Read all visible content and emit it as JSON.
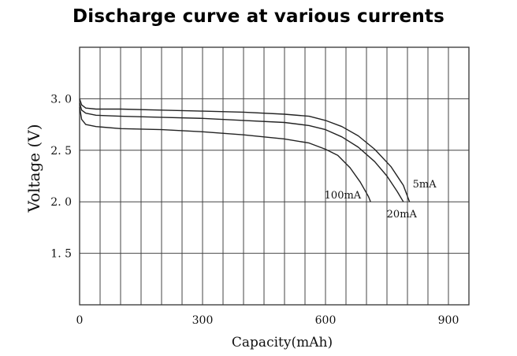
{
  "chart_data": {
    "type": "line",
    "title": "Discharge curve at various currents",
    "xlabel": "Capacity(mAh)",
    "ylabel": "Voltage (V)",
    "xlim": [
      0,
      950
    ],
    "ylim": [
      1.0,
      3.5
    ],
    "grid": true,
    "x_ticks": [
      "0",
      "300",
      "600",
      "900"
    ],
    "y_ticks": [
      "1. 5",
      "2. 0",
      "2. 5",
      "3. 0"
    ],
    "y_tick_values": [
      1.5,
      2.0,
      2.5,
      3.0
    ],
    "x_tick_values": [
      0,
      300,
      600,
      900
    ],
    "series": [
      {
        "name": "5mA",
        "x": [
          0,
          5,
          15,
          40,
          100,
          200,
          300,
          400,
          500,
          560,
          600,
          640,
          680,
          720,
          760,
          790,
          805
        ],
        "y": [
          3.0,
          2.94,
          2.91,
          2.9,
          2.9,
          2.89,
          2.88,
          2.87,
          2.85,
          2.83,
          2.79,
          2.73,
          2.64,
          2.51,
          2.34,
          2.16,
          2.0
        ]
      },
      {
        "name": "20mA",
        "x": [
          0,
          5,
          15,
          40,
          100,
          200,
          300,
          400,
          500,
          560,
          600,
          640,
          680,
          720,
          750,
          775,
          790
        ],
        "y": [
          2.96,
          2.89,
          2.86,
          2.84,
          2.83,
          2.82,
          2.81,
          2.79,
          2.77,
          2.74,
          2.7,
          2.63,
          2.53,
          2.39,
          2.25,
          2.1,
          2.0
        ]
      },
      {
        "name": "100mA",
        "x": [
          0,
          5,
          15,
          40,
          100,
          200,
          300,
          400,
          500,
          560,
          600,
          630,
          660,
          685,
          705,
          710
        ],
        "y": [
          2.92,
          2.8,
          2.75,
          2.73,
          2.71,
          2.7,
          2.68,
          2.65,
          2.61,
          2.57,
          2.51,
          2.45,
          2.33,
          2.19,
          2.05,
          2.0
        ]
      }
    ]
  }
}
